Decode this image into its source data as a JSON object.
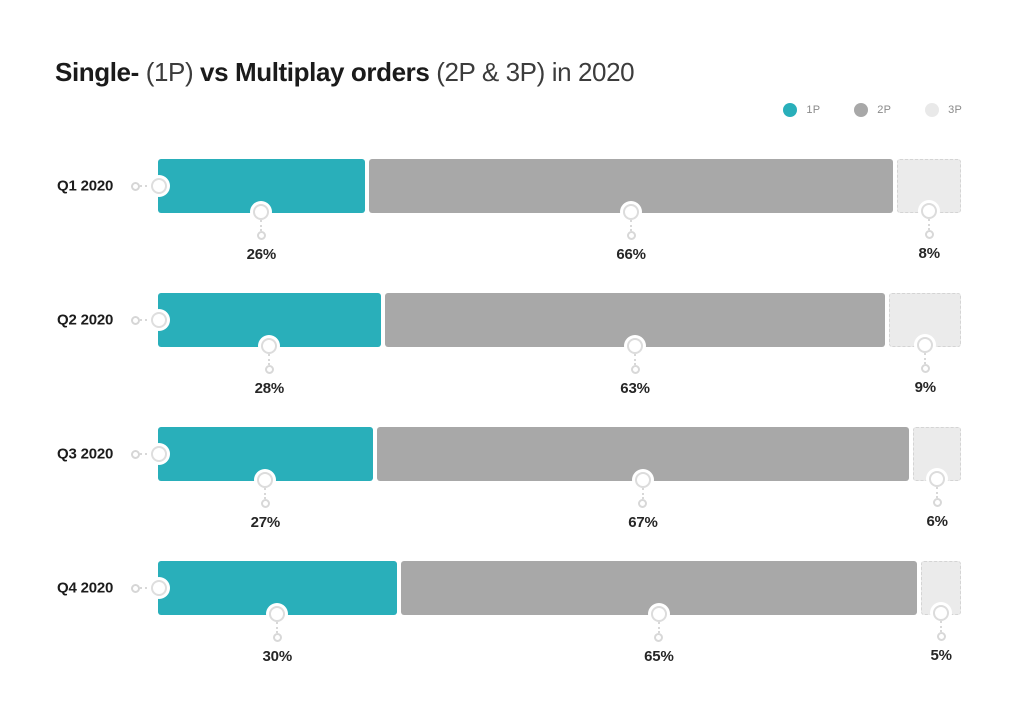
{
  "title": {
    "part1_bold": "Single-",
    "part2_light": " (1P) ",
    "part3_bold": "vs Multiplay orders",
    "part4_light": " (2P & 3P) in 2020"
  },
  "legend": [
    {
      "label": "1P",
      "color": "#29AFBA"
    },
    {
      "label": "2P",
      "color": "#A8A8A8"
    },
    {
      "label": "3P",
      "color": "#E9E9E9"
    }
  ],
  "chart_data": {
    "type": "bar",
    "orientation": "horizontal",
    "stacked": true,
    "title": "Single- (1P) vs Multiplay orders (2P & 3P) in 2020",
    "categories": [
      "Q1 2020",
      "Q2 2020",
      "Q3 2020",
      "Q4 2020"
    ],
    "series": [
      {
        "name": "1P",
        "color": "#29AFBA",
        "values": [
          26,
          28,
          27,
          30
        ]
      },
      {
        "name": "2P",
        "color": "#A8A8A8",
        "values": [
          66,
          63,
          67,
          65
        ]
      },
      {
        "name": "3P",
        "color": "#EBEBEB",
        "values": [
          8,
          9,
          6,
          5
        ]
      }
    ],
    "value_labels": [
      [
        "26%",
        "66%",
        "8%"
      ],
      [
        "28%",
        "63%",
        "9%"
      ],
      [
        "27%",
        "67%",
        "6%"
      ],
      [
        "30%",
        "65%",
        "5%"
      ]
    ],
    "xlim": [
      0,
      100
    ],
    "grid": false,
    "legend_position": "top-right"
  }
}
